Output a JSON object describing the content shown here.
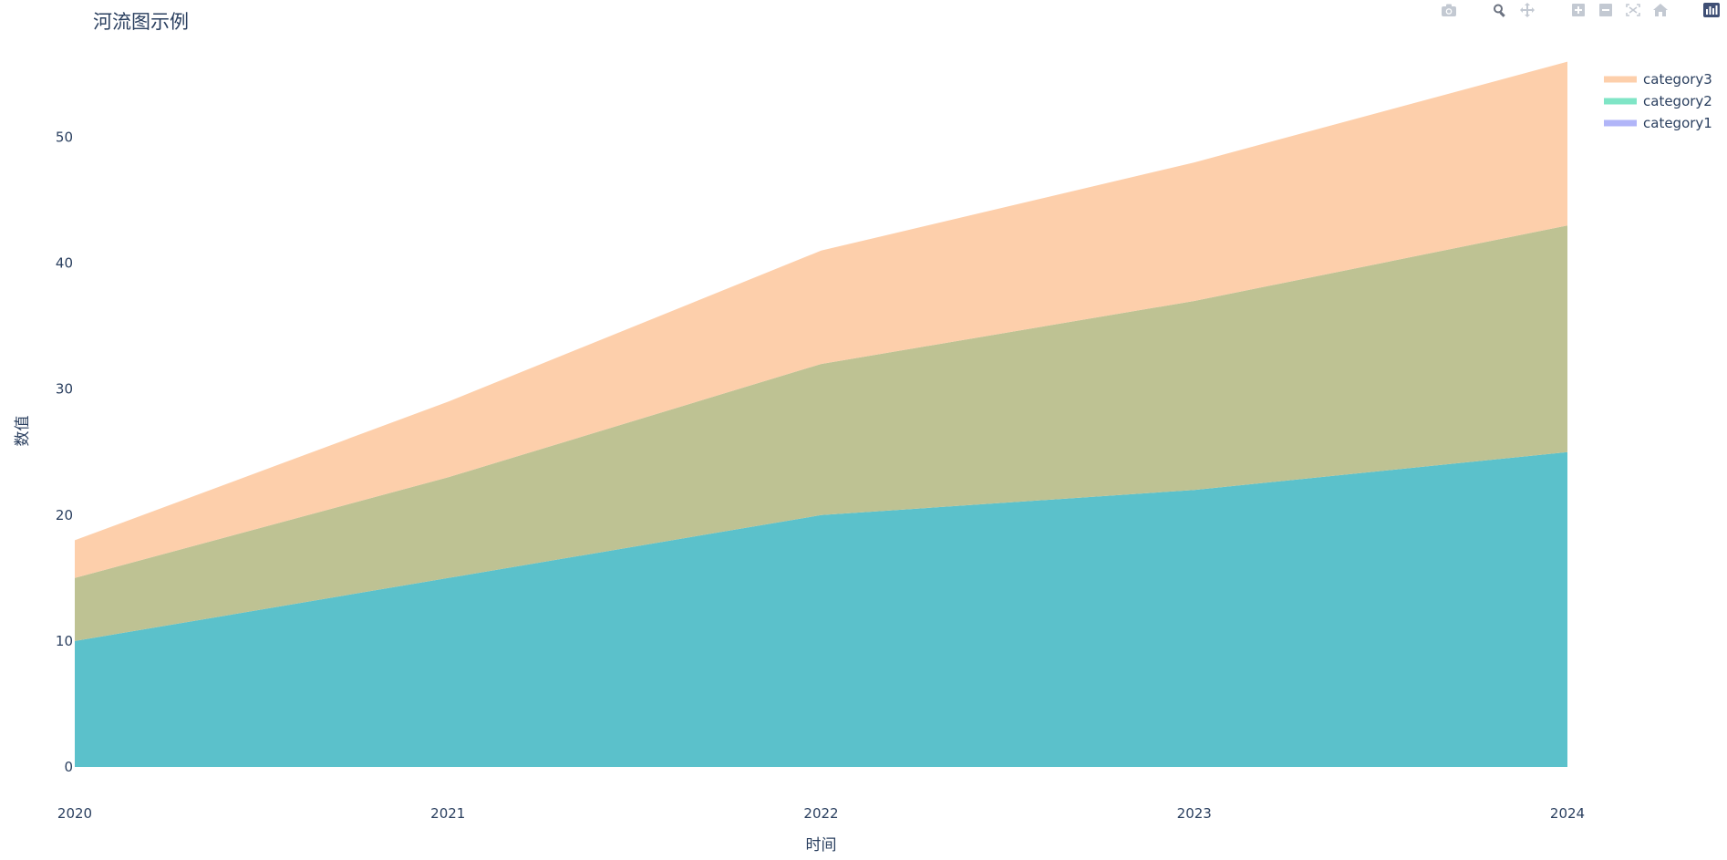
{
  "title": "河流图示例",
  "colors": {
    "text": "#2a3f5f",
    "modebar_icon": "#c3c9d2",
    "modebar_active": "#6b7280",
    "plotly_logo": "#3f4f75"
  },
  "modebar": [
    {
      "name": "camera-icon",
      "label": "Download plot as a png"
    },
    {
      "name": "zoom-icon",
      "label": "Zoom"
    },
    {
      "name": "pan-icon",
      "label": "Pan"
    },
    {
      "name": "zoom-in-icon",
      "label": "Zoom in"
    },
    {
      "name": "zoom-out-icon",
      "label": "Zoom out"
    },
    {
      "name": "autoscale-icon",
      "label": "Autoscale"
    },
    {
      "name": "home-icon",
      "label": "Reset axes"
    },
    {
      "name": "plotly-logo-icon",
      "label": "Produced with Plotly"
    }
  ],
  "chart_data": {
    "type": "area",
    "stacked": true,
    "title": "河流图示例",
    "xlabel": "时间",
    "ylabel": "数值",
    "x": [
      "2020",
      "2021",
      "2022",
      "2023",
      "2024"
    ],
    "xlim": [
      "2020",
      "2024"
    ],
    "ylim": [
      0,
      58
    ],
    "yticks": [
      0,
      10,
      20,
      30,
      40,
      50
    ],
    "grid": false,
    "legend_position": "top-right",
    "series": [
      {
        "name": "category1",
        "values": [
          10,
          15,
          20,
          22,
          25
        ],
        "legend_color": "#b1b5f8",
        "fill_color": "#5bc1cb"
      },
      {
        "name": "category2",
        "values": [
          5,
          8,
          12,
          15,
          18
        ],
        "legend_color": "#7fe5c6",
        "fill_color": "#bec293"
      },
      {
        "name": "category3",
        "values": [
          3,
          6,
          9,
          11,
          13
        ],
        "legend_color": "#fdcfab",
        "fill_color": "#fdcfab"
      }
    ]
  }
}
